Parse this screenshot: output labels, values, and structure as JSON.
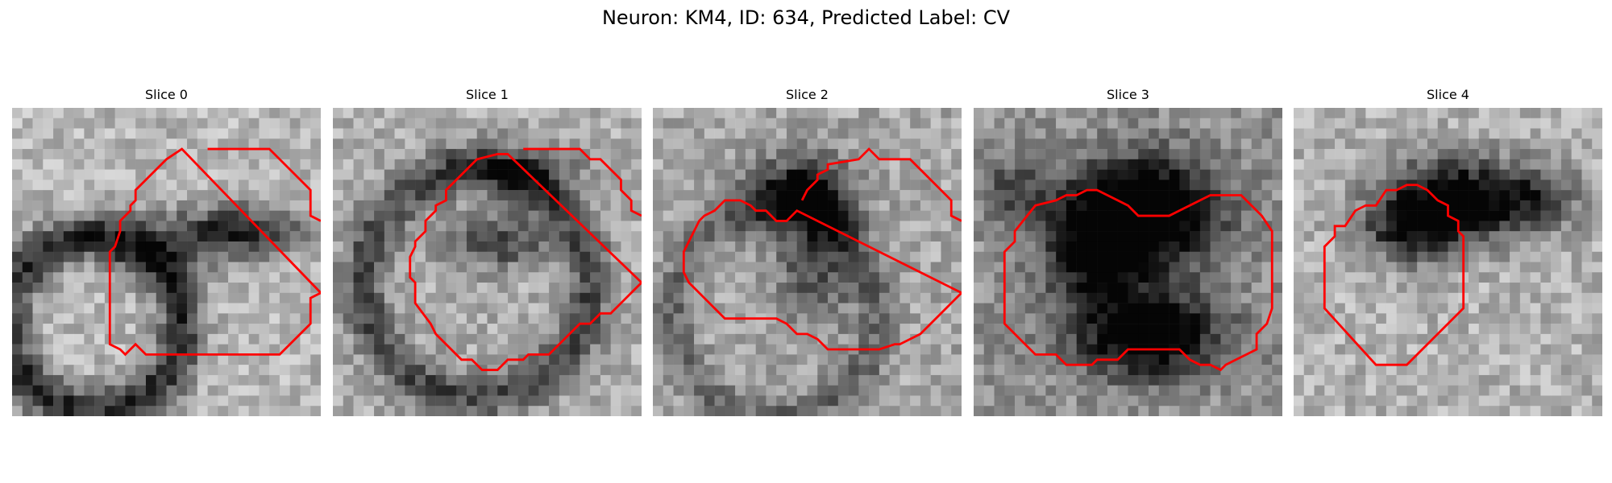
{
  "figure": {
    "title": "Neuron: KM4, ID: 634, Predicted Label: CV",
    "overlay_color": "#ff0000"
  },
  "panels": [
    {
      "title": "Slice 0"
    },
    {
      "title": "Slice 1"
    },
    {
      "title": "Slice 2"
    },
    {
      "title": "Slice 3"
    },
    {
      "title": "Slice 4"
    }
  ]
}
